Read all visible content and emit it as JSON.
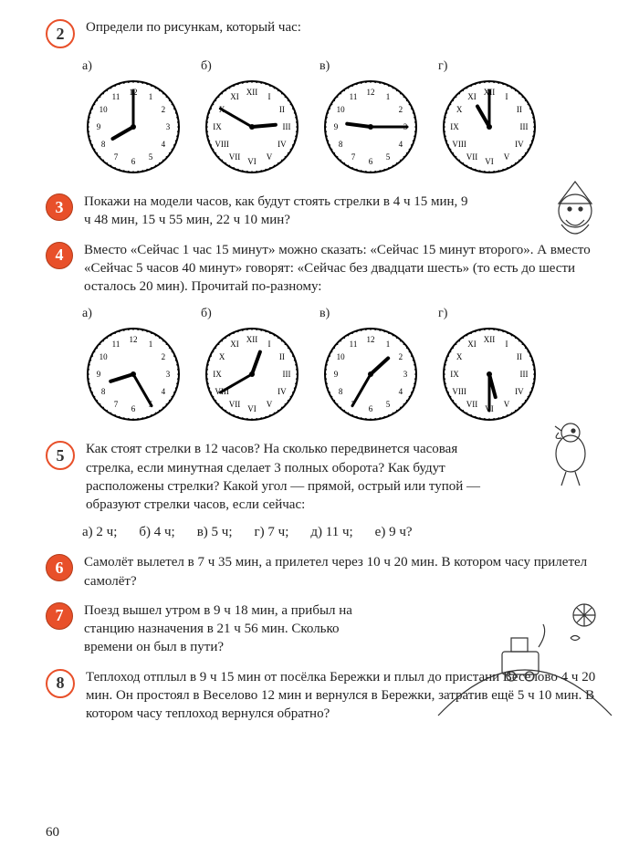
{
  "page_number": "60",
  "badge_red_fill": "#e8502a",
  "badge_red_border": "#b23a18",
  "tasks": {
    "t2": {
      "num": "2",
      "style": "white",
      "text": "Определи по рисункам, который час:",
      "clocks": [
        {
          "label": "а)",
          "numerals": "arabic",
          "hour": 8,
          "minute": 0
        },
        {
          "label": "б)",
          "numerals": "roman",
          "hour": 2,
          "minute": 50
        },
        {
          "label": "в)",
          "numerals": "arabic",
          "hour": 9,
          "minute": 15
        },
        {
          "label": "г)",
          "numerals": "roman",
          "hour": 11,
          "minute": 0
        }
      ]
    },
    "t3": {
      "num": "3",
      "style": "red",
      "text": "Покажи на модели часов, как будут стоять стрелки в 4 ч 15 мин, 9 ч 48 мин, 15 ч 55 мин, 22 ч 10 мин?"
    },
    "t4": {
      "num": "4",
      "style": "red",
      "text": "Вместо «Сейчас 1 час 15 минут» можно сказать: «Сейчас 15 минут второго». А вместо «Сейчас 5 часов 40 минут» говорят: «Сейчас без двадцати шесть» (то есть до шести осталось 20 мин). Прочитай по-разному:",
      "clocks": [
        {
          "label": "а)",
          "numerals": "arabic",
          "hour": 8,
          "minute": 25
        },
        {
          "label": "б)",
          "numerals": "roman",
          "hour": 12,
          "minute": 40
        },
        {
          "label": "в)",
          "numerals": "arabic",
          "hour": 1,
          "minute": 35
        },
        {
          "label": "г)",
          "numerals": "roman",
          "hour": 5,
          "minute": 30
        }
      ]
    },
    "t5": {
      "num": "5",
      "style": "white",
      "text": "Как стоят стрелки в 12 часов? На сколько передвинется часовая стрелка, если минутная сделает 3 полных оборота? Как будут расположены стрелки? Какой угол — прямой, острый или тупой — образуют стрелки часов, если сейчас:",
      "options": [
        "а) 2 ч;",
        "б) 4 ч;",
        "в) 5 ч;",
        "г) 7 ч;",
        "д) 11 ч;",
        "е) 9 ч?"
      ]
    },
    "t6": {
      "num": "6",
      "style": "red",
      "text": "Самолёт вылетел в 7 ч 35 мин, а прилетел через 10 ч 20 мин. В котором часу прилетел самолёт?"
    },
    "t7": {
      "num": "7",
      "style": "red",
      "text": "Поезд вышел утром в 9 ч 18 мин, а прибыл на станцию назначения в 21 ч 56 мин. Сколько времени он был в пути?"
    },
    "t8": {
      "num": "8",
      "style": "white",
      "text": "Теплоход отплыл в 9 ч 15 мин от посёлка Бережки и плыл до пристани Веселово 4 ч 20 мин. Он простоял в Веселово 12 мин и вернулся в Бережки, затратив ещё 5 ч 10 мин. В котором часу теплоход вернулся обратно?"
    }
  },
  "clock_style": {
    "radius": 50,
    "face_fill": "#ffffff",
    "border_color": "#000000",
    "tick_color": "#000000",
    "hand_color": "#000000",
    "hour_hand_len": 26,
    "minute_hand_len": 40,
    "hand_width_hour": 4,
    "hand_width_min": 3,
    "numeral_fontsize": 9
  }
}
